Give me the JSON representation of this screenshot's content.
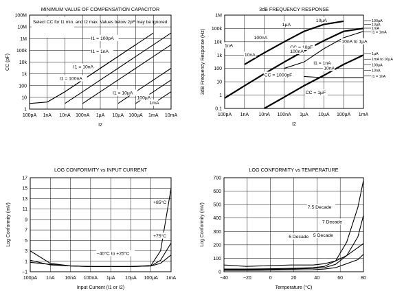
{
  "chart_data": [
    {
      "type": "line",
      "title": "MINIMUM VALUE OF COMPENSATION CAPACITOR",
      "xlabel": "I2",
      "ylabel": "CC (pF)",
      "x_scale": "log",
      "y_scale": "log",
      "xlim": [
        1e-10,
        0.01
      ],
      "ylim": [
        1,
        100000000.0
      ],
      "grid": true,
      "x_ticks": [
        "100pA",
        "1nA",
        "10nA",
        "100nA",
        "1µA",
        "10µA",
        "100µA",
        "1mA",
        "10mA"
      ],
      "y_ticks": [
        "1",
        "10",
        "100",
        "1k",
        "10k",
        "100k",
        "1M",
        "10M",
        "100M"
      ],
      "note": "Select CC for I1 min. and I2 max. Values below 2pF may be ignored.",
      "series": [
        {
          "name": "I1 = 100pA",
          "x": [
            1e-10,
            1e-09,
            1e-08,
            1e-07,
            1e-06,
            1e-05,
            0.0001
          ],
          "y": [
            3,
            4,
            30,
            300,
            3000,
            30000,
            300000
          ]
        },
        {
          "name": "I1 = 1nA",
          "x": [
            1e-09,
            1e-08,
            1e-07,
            1e-06,
            1e-05,
            0.0001,
            0.001
          ],
          "y": [
            4,
            30,
            300,
            3000,
            30000,
            300000,
            3000000
          ]
        },
        {
          "name": "I1 = 10nA",
          "x": [
            1e-08,
            1e-07,
            1e-06,
            1e-05,
            0.0001,
            0.001,
            0.01
          ],
          "y": [
            3,
            30,
            300,
            3000,
            30000,
            300000,
            3000000
          ]
        },
        {
          "name": "I1 = 100nA",
          "x": [
            1e-07,
            1e-06,
            1e-05,
            0.0001,
            0.001,
            0.01
          ],
          "y": [
            3,
            30,
            300,
            3000,
            30000,
            300000
          ]
        },
        {
          "name": "I1 = 10µA",
          "x": [
            1e-05,
            0.0001,
            0.001,
            0.01
          ],
          "y": [
            3,
            30,
            300,
            3000
          ]
        },
        {
          "name": "I1 = 100µA",
          "x": [
            0.0001,
            0.001,
            0.01
          ],
          "y": [
            3,
            30,
            300
          ]
        },
        {
          "name": "I1 = 1mA",
          "x": [
            0.001,
            0.01
          ],
          "y": [
            3,
            30
          ]
        }
      ],
      "annotations": [
        "I1 = 100pA",
        "I1 = 1nA",
        "I1 = 10nA",
        "I1 = 100nA",
        "I1 = 10µA",
        "100µA",
        "1mA"
      ]
    },
    {
      "type": "line",
      "title": "3dB FREQUENCY RESPONSE",
      "xlabel": "I2",
      "ylabel": "3dB Frequency Response (Hz)",
      "x_scale": "log",
      "y_scale": "log",
      "xlim": [
        1e-10,
        0.001
      ],
      "ylim": [
        0.1,
        1000000.0
      ],
      "grid": true,
      "x_ticks": [
        "100pA",
        "1nA",
        "10nA",
        "100nA",
        "1µA",
        "10µA",
        "100µA",
        "1mA"
      ],
      "y_ticks": [
        "0.1",
        "1",
        "10",
        "100",
        "1k",
        "10k",
        "100k",
        "1M"
      ],
      "series": [
        {
          "name": "CC = 10pF",
          "x": [
            1e-09,
            1e-08,
            1e-07,
            1e-06,
            1e-05,
            0.0001
          ],
          "y": [
            200,
            1500,
            10000,
            60000,
            200000,
            350000
          ]
        },
        {
          "name": "CC = 1000pF",
          "x": [
            1e-10,
            1e-09,
            1e-08,
            1e-07,
            1e-06,
            1e-05,
            0.0001,
            0.001
          ],
          "y": [
            0.6,
            5,
            40,
            300,
            2000,
            12000,
            60000,
            100000
          ]
        },
        {
          "name": "CC = 1µF",
          "x": [
            1e-08,
            1e-07,
            1e-06,
            1e-05,
            0.0001,
            0.001
          ],
          "y": [
            0.1,
            0.7,
            5,
            30,
            200,
            1000
          ]
        },
        {
          "name": "10nA to 1µA",
          "x": [
            1e-07,
            1e-06,
            1e-05,
            0.0001,
            0.001
          ],
          "y": [
            100,
            300,
            3000,
            20000,
            60000
          ]
        },
        {
          "name": "I1 = 1mA",
          "x": [
            1e-06,
            1e-05,
            0.0001,
            0.001
          ],
          "y": [
            25,
            20,
            20,
            20
          ]
        }
      ],
      "annotations": [
        "10µA",
        "1µA",
        "100nA",
        "1nA",
        "CC = 10pF",
        "10nA to 1µA",
        "10nA",
        "100nA",
        "I1 = 1nA",
        "10nA",
        "CC = 1000pF",
        "CC = 1µF"
      ],
      "legend_right": [
        "100µA",
        "10µA",
        "1mA",
        "I1 = 1mA",
        "1µA",
        "1mA to 10µA",
        "100µA",
        "10nA",
        "I1 = 1nA"
      ]
    },
    {
      "type": "line",
      "title": "LOG CONFORMITY vs INPUT CURRENT",
      "xlabel": "Input Current (I1 or I2)",
      "ylabel": "Log Conformity (mV)",
      "x_scale": "log",
      "xlim": [
        1e-10,
        0.001
      ],
      "ylim": [
        -1,
        17
      ],
      "grid": true,
      "x_ticks": [
        "100pA",
        "1nA",
        "10nA",
        "100nA",
        "1µA",
        "10µA",
        "100µA",
        "1mA"
      ],
      "y_ticks": [
        "−1",
        "1",
        "3",
        "5",
        "7",
        "9",
        "11",
        "13",
        "15",
        "17"
      ],
      "series": [
        {
          "name": "+85°C",
          "x": [
            1e-10,
            1e-09,
            1e-08,
            1e-07,
            1e-06,
            1e-05,
            0.0001,
            0.0003,
            0.001
          ],
          "y": [
            1.2,
            0.3,
            0.1,
            0.0,
            0.0,
            0.0,
            0.2,
            3,
            15
          ]
        },
        {
          "name": "+75°C",
          "x": [
            1e-10,
            1e-09,
            1e-08,
            1e-07,
            1e-06,
            1e-05,
            0.0001,
            0.0003,
            0.001
          ],
          "y": [
            3,
            0.6,
            0.1,
            0.0,
            0.0,
            0.0,
            0.1,
            1.2,
            4.5
          ]
        },
        {
          "name": "−40°C to +25°C",
          "x": [
            1e-10,
            1e-09,
            1e-08,
            1e-07,
            1e-06,
            1e-05,
            0.0001,
            0.0003,
            0.001
          ],
          "y": [
            0.8,
            0.4,
            0.1,
            0.0,
            0.0,
            0.0,
            0.1,
            0.6,
            2.2
          ]
        }
      ],
      "annotations": [
        "+85°C",
        "+75°C",
        "−40°C to +25°C"
      ]
    },
    {
      "type": "line",
      "title": "LOG CONFORMITY vs TEMPERATURE",
      "xlabel": "Temperature (°C)",
      "ylabel": "Log Conformity (mV)",
      "xlim": [
        -40,
        85
      ],
      "ylim": [
        0,
        700
      ],
      "grid": true,
      "x_ticks": [
        "−40",
        "−20",
        "0",
        "20",
        "40",
        "60",
        "80"
      ],
      "y_ticks": [
        "0",
        "100",
        "200",
        "300",
        "400",
        "500",
        "600",
        "700"
      ],
      "series": [
        {
          "name": "7.5 Decade",
          "x": [
            -40,
            -20,
            0,
            20,
            40,
            50,
            60,
            70,
            80,
            85
          ],
          "y": [
            20,
            20,
            22,
            25,
            30,
            40,
            80,
            220,
            480,
            680
          ]
        },
        {
          "name": "7 Decade",
          "x": [
            -40,
            -20,
            0,
            20,
            40,
            50,
            60,
            70,
            80,
            85
          ],
          "y": [
            15,
            15,
            17,
            20,
            25,
            30,
            55,
            120,
            260,
            420
          ]
        },
        {
          "name": "6 Decade",
          "x": [
            -40,
            -20,
            0,
            20,
            40,
            50,
            60,
            70,
            80,
            85
          ],
          "y": [
            50,
            40,
            45,
            50,
            50,
            60,
            80,
            120,
            180,
            210
          ]
        },
        {
          "name": "5 Decade",
          "x": [
            -40,
            -20,
            0,
            20,
            40,
            50,
            60,
            70,
            80,
            85
          ],
          "y": [
            10,
            10,
            12,
            14,
            15,
            20,
            30,
            60,
            90,
            130
          ]
        }
      ],
      "annotations": [
        "7.5 Decade",
        "7 Decade",
        "6 Decade",
        "5 Decade"
      ]
    }
  ]
}
